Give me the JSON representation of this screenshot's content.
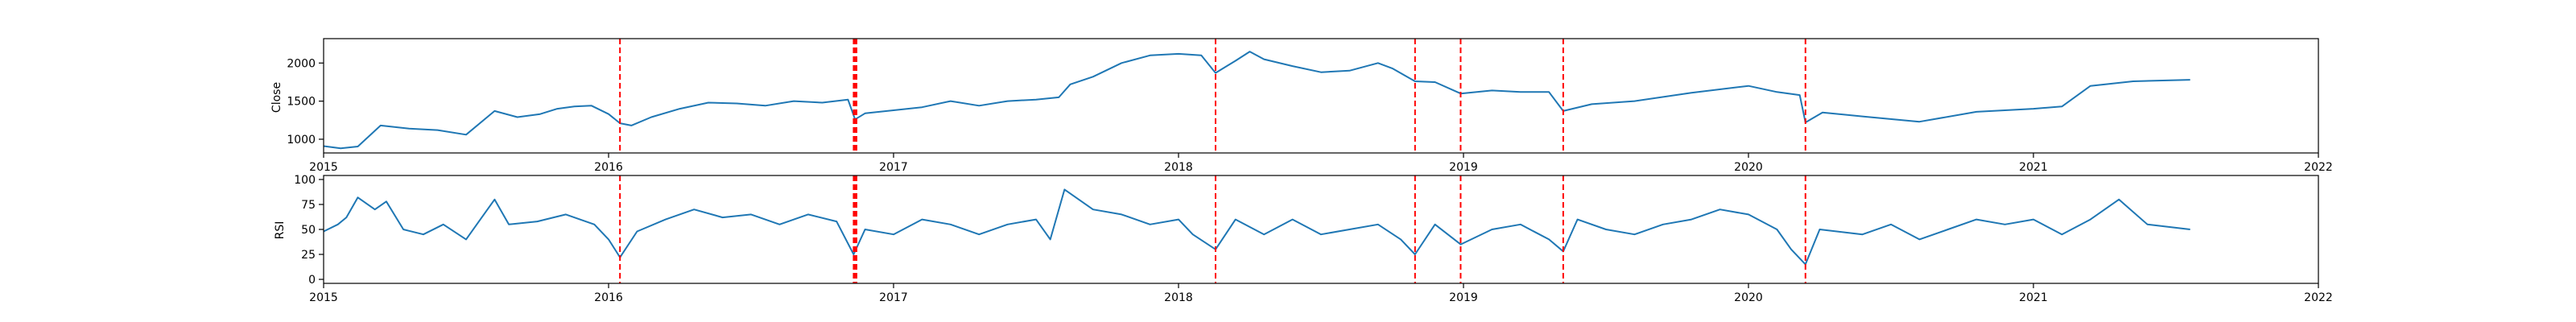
{
  "colors": {
    "series": "#1f77b4",
    "event": "#ff0000",
    "axis": "#000000",
    "background": "#ffffff"
  },
  "chart_data": [
    {
      "type": "line",
      "ylabel": "Close",
      "xlim": [
        2015.0,
        2022.0
      ],
      "ylim": [
        820,
        2320
      ],
      "x_ticks": [
        "2015",
        "2016",
        "2017",
        "2018",
        "2019",
        "2020",
        "2021",
        "2022"
      ],
      "y_ticks": [
        1000,
        1500,
        2000
      ],
      "grid": false,
      "event_lines_x": [
        2016.04,
        2016.86,
        2016.865,
        2016.87,
        2018.13,
        2018.83,
        2018.99,
        2019.35,
        2020.2
      ],
      "series": [
        {
          "x": [
            2015.0,
            2015.06,
            2015.12,
            2015.2,
            2015.3,
            2015.4,
            2015.5,
            2015.6,
            2015.68,
            2015.76,
            2015.82,
            2015.88,
            2015.94,
            2016.0,
            2016.04,
            2016.08,
            2016.15,
            2016.25,
            2016.35,
            2016.45,
            2016.55,
            2016.65,
            2016.75,
            2016.84,
            2016.865,
            2016.9,
            2017.0,
            2017.1,
            2017.2,
            2017.3,
            2017.4,
            2017.5,
            2017.58,
            2017.62,
            2017.7,
            2017.8,
            2017.9,
            2018.0,
            2018.08,
            2018.13,
            2018.2,
            2018.25,
            2018.3,
            2018.4,
            2018.5,
            2018.6,
            2018.7,
            2018.75,
            2018.83,
            2018.9,
            2018.99,
            2019.1,
            2019.2,
            2019.3,
            2019.35,
            2019.45,
            2019.6,
            2019.8,
            2020.0,
            2020.1,
            2020.18,
            2020.2,
            2020.26,
            2020.4,
            2020.6,
            2020.8,
            2021.0,
            2021.1,
            2021.2,
            2021.35,
            2021.55
          ],
          "y": [
            910,
            880,
            905,
            1180,
            1140,
            1120,
            1060,
            1370,
            1290,
            1330,
            1400,
            1430,
            1440,
            1330,
            1210,
            1180,
            1290,
            1400,
            1480,
            1470,
            1440,
            1500,
            1480,
            1520,
            1260,
            1340,
            1380,
            1420,
            1500,
            1440,
            1500,
            1520,
            1550,
            1720,
            1820,
            2000,
            2100,
            2120,
            2100,
            1870,
            2030,
            2150,
            2050,
            1960,
            1880,
            1900,
            2000,
            1930,
            1760,
            1750,
            1600,
            1640,
            1620,
            1620,
            1370,
            1460,
            1500,
            1610,
            1700,
            1620,
            1580,
            1220,
            1350,
            1300,
            1230,
            1360,
            1400,
            1430,
            1700,
            1760,
            1780
          ]
        }
      ]
    },
    {
      "type": "line",
      "ylabel": "RSI",
      "xlim": [
        2015.0,
        2022.0
      ],
      "ylim": [
        -4,
        104
      ],
      "x_ticks": [
        "2015",
        "2016",
        "2017",
        "2018",
        "2019",
        "2020",
        "2021",
        "2022"
      ],
      "y_ticks": [
        0,
        25,
        50,
        75,
        100
      ],
      "grid": false,
      "event_lines_x": [
        2016.04,
        2016.86,
        2016.865,
        2016.87,
        2018.13,
        2018.83,
        2018.99,
        2019.35,
        2020.2
      ],
      "series": [
        {
          "x": [
            2015.0,
            2015.05,
            2015.08,
            2015.12,
            2015.18,
            2015.22,
            2015.28,
            2015.35,
            2015.42,
            2015.5,
            2015.55,
            2015.6,
            2015.65,
            2015.75,
            2015.85,
            2015.95,
            2016.0,
            2016.04,
            2016.1,
            2016.2,
            2016.3,
            2016.4,
            2016.5,
            2016.6,
            2016.7,
            2016.8,
            2016.86,
            2016.9,
            2017.0,
            2017.1,
            2017.2,
            2017.3,
            2017.4,
            2017.5,
            2017.55,
            2017.6,
            2017.7,
            2017.8,
            2017.9,
            2018.0,
            2018.05,
            2018.13,
            2018.2,
            2018.3,
            2018.4,
            2018.5,
            2018.6,
            2018.7,
            2018.78,
            2018.83,
            2018.9,
            2018.99,
            2019.1,
            2019.2,
            2019.3,
            2019.35,
            2019.4,
            2019.5,
            2019.6,
            2019.7,
            2019.8,
            2019.9,
            2020.0,
            2020.1,
            2020.15,
            2020.2,
            2020.25,
            2020.4,
            2020.5,
            2020.6,
            2020.7,
            2020.8,
            2020.9,
            2021.0,
            2021.1,
            2021.2,
            2021.3,
            2021.4,
            2021.55
          ],
          "y": [
            48,
            55,
            62,
            82,
            70,
            78,
            50,
            45,
            55,
            40,
            60,
            80,
            55,
            58,
            65,
            55,
            40,
            22,
            48,
            60,
            70,
            62,
            65,
            55,
            65,
            58,
            25,
            50,
            45,
            60,
            55,
            45,
            55,
            60,
            40,
            90,
            70,
            65,
            55,
            60,
            45,
            30,
            60,
            45,
            60,
            45,
            50,
            55,
            40,
            25,
            55,
            35,
            50,
            55,
            40,
            28,
            60,
            50,
            45,
            55,
            60,
            70,
            65,
            50,
            30,
            15,
            50,
            45,
            55,
            40,
            50,
            60,
            55,
            60,
            45,
            60,
            80,
            55,
            50
          ]
        }
      ]
    }
  ]
}
